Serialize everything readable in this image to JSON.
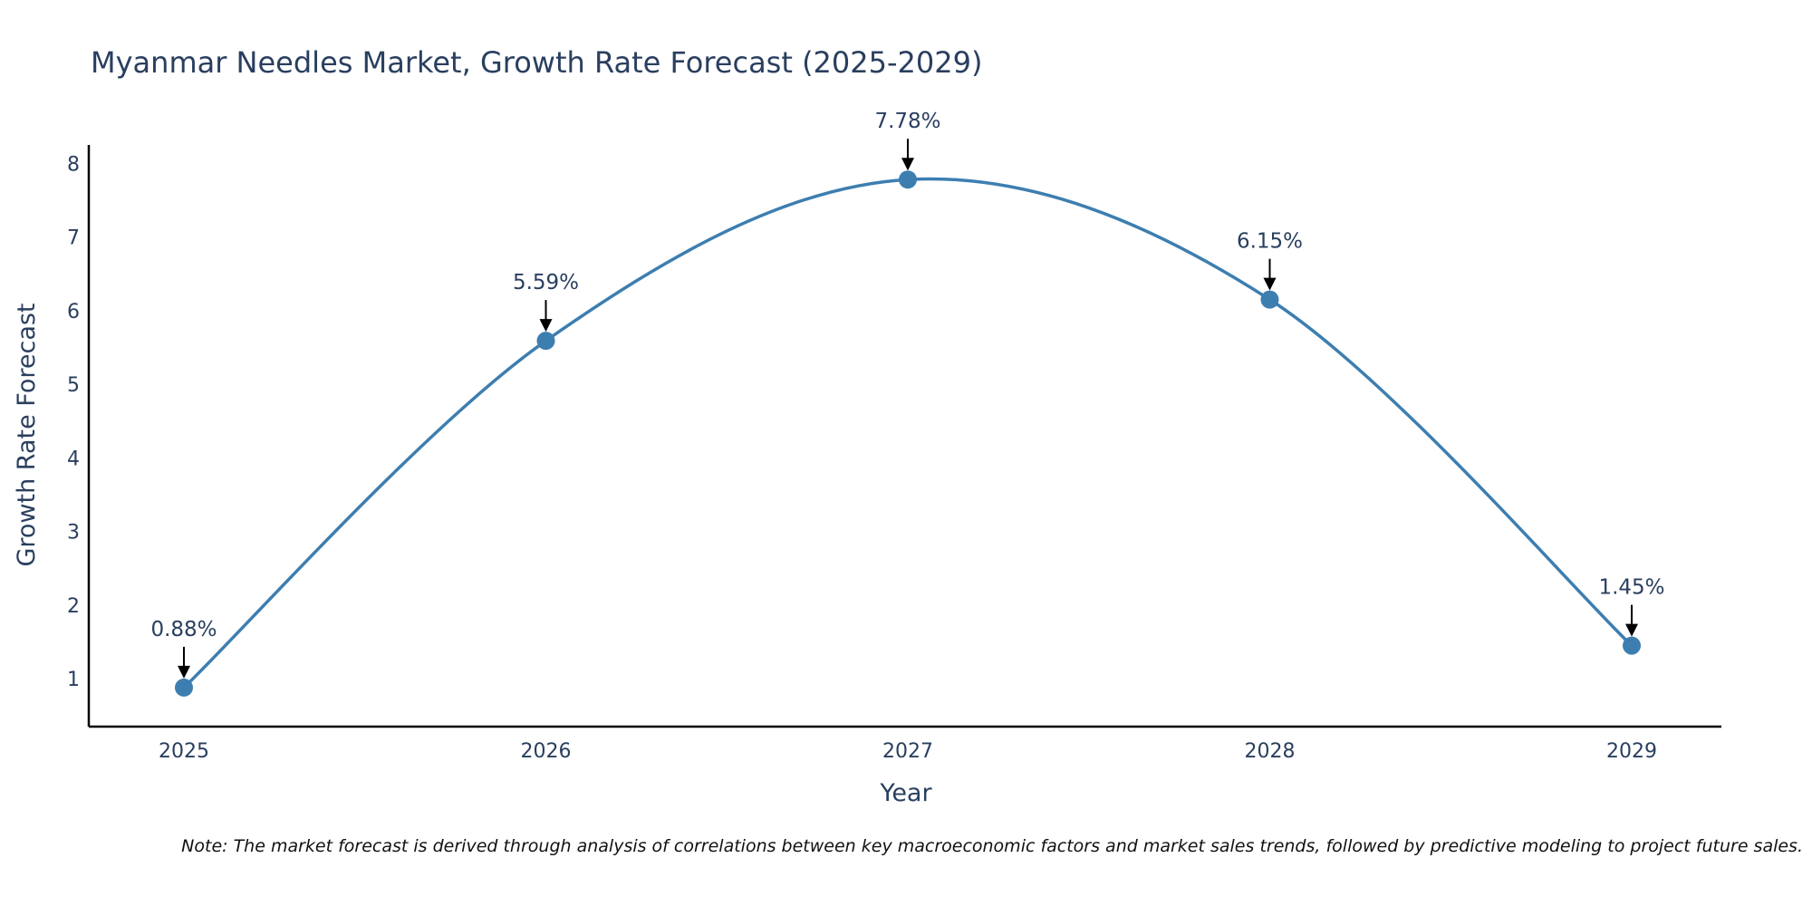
{
  "chart_data": {
    "type": "line",
    "title": "Myanmar Needles Market, Growth Rate Forecast (2025-2029)",
    "xlabel": "Year",
    "ylabel": "Growth Rate Forecast",
    "categories": [
      "2025",
      "2026",
      "2027",
      "2028",
      "2029"
    ],
    "series": [
      {
        "name": "Growth Rate Forecast",
        "values": [
          0.88,
          5.59,
          7.78,
          6.15,
          1.45
        ]
      }
    ],
    "annotations": [
      "0.88%",
      "5.59%",
      "7.78%",
      "6.15%",
      "1.45%"
    ],
    "y_ticks": [
      "1",
      "2",
      "3",
      "4",
      "5",
      "6",
      "7",
      "8"
    ],
    "ylim": [
      0.35,
      8.25
    ],
    "grid": false,
    "line_color": "#3d7eb0",
    "marker_color": "#3d7eb0",
    "note": "Note: The market forecast is derived through analysis of correlations between key macroeconomic factors and market sales trends, followed by predictive modeling to project future sales."
  }
}
